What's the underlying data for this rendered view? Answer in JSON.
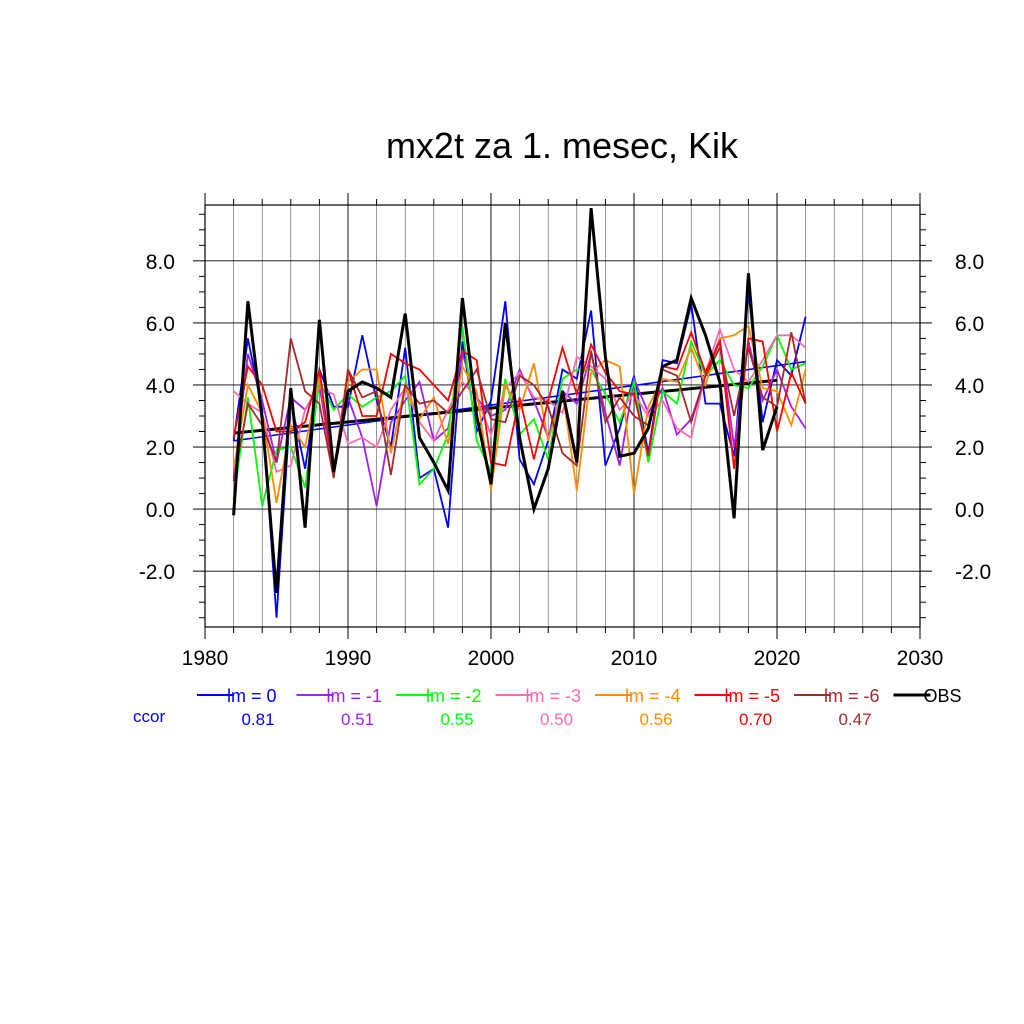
{
  "chart_data": {
    "type": "line",
    "title": "mx2t za 1. mesec, Kik",
    "xlabel": "",
    "ylabel": "",
    "xlim": [
      1980,
      2030
    ],
    "ylim": [
      -3.8,
      9.8
    ],
    "x_ticks": [
      1980,
      1990,
      2000,
      2010,
      2020,
      2030
    ],
    "y_ticks": [
      -2.0,
      0.0,
      2.0,
      4.0,
      6.0,
      8.0
    ],
    "y_tick_labels": [
      "-2.0",
      "0.0",
      "2.0",
      "4.0",
      "6.0",
      "8.0"
    ],
    "grid": true,
    "legend_position": "bottom",
    "ccor_label": "ccor",
    "x": [
      1982,
      1983,
      1984,
      1985,
      1986,
      1987,
      1988,
      1989,
      1990,
      1991,
      1992,
      1993,
      1994,
      1995,
      1996,
      1997,
      1998,
      1999,
      2000,
      2001,
      2002,
      2003,
      2004,
      2005,
      2006,
      2007,
      2008,
      2009,
      2010,
      2011,
      2012,
      2013,
      2014,
      2015,
      2016,
      2017,
      2018,
      2019,
      2020,
      2021,
      2022
    ],
    "series": [
      {
        "name": "lm = 0",
        "color": "#0000ff",
        "ccor": "0.81",
        "values": [
          2.2,
          5.5,
          3.2,
          -3.5,
          3.5,
          1.3,
          4.5,
          3.3,
          3.3,
          5.6,
          3.5,
          2.0,
          5.2,
          1.0,
          1.3,
          -0.6,
          5.4,
          2.5,
          3.5,
          6.7,
          1.6,
          0.8,
          2.2,
          4.5,
          4.2,
          6.4,
          1.4,
          2.6,
          4.3,
          1.8,
          4.8,
          4.7,
          6.6,
          3.4,
          3.4,
          1.7,
          7.0,
          2.8,
          4.8,
          4.3,
          6.2
        ]
      },
      {
        "name": "lm = -1",
        "color": "#a020f0",
        "ccor": "0.51",
        "values": [
          1.0,
          5.0,
          3.5,
          1.5,
          3.6,
          3.2,
          4.0,
          1.1,
          3.6,
          2.3,
          0.1,
          2.8,
          3.5,
          4.1,
          2.2,
          2.6,
          5.0,
          3.6,
          3.0,
          3.2,
          4.5,
          3.5,
          2.3,
          3.8,
          3.4,
          5.0,
          3.1,
          1.4,
          4.2,
          3.1,
          3.9,
          2.4,
          2.9,
          4.3,
          5.5,
          2.0,
          5.4,
          3.5,
          4.5,
          3.3,
          2.6
        ]
      },
      {
        "name": "lm = -2",
        "color": "#00ff00",
        "ccor": "0.55",
        "values": [
          0.3,
          3.6,
          0.1,
          1.9,
          2.0,
          0.7,
          4.1,
          3.2,
          3.7,
          3.3,
          3.6,
          3.8,
          4.3,
          0.8,
          1.3,
          2.4,
          5.9,
          2.2,
          1.2,
          4.2,
          2.4,
          2.9,
          1.6,
          4.2,
          4.5,
          4.5,
          3.7,
          2.8,
          4.1,
          1.5,
          3.8,
          3.4,
          5.4,
          4.3,
          4.8,
          4.0,
          3.9,
          4.6,
          5.6,
          4.5,
          4.7
        ]
      },
      {
        "name": "lm = -3",
        "color": "#ff69b4",
        "ccor": "0.50",
        "values": [
          3.8,
          3.4,
          3.1,
          1.2,
          1.4,
          3.2,
          3.9,
          3.7,
          2.1,
          2.3,
          2.0,
          3.2,
          3.9,
          2.8,
          2.2,
          3.2,
          4.1,
          3.6,
          2.4,
          3.9,
          4.4,
          3.6,
          3.5,
          3.1,
          4.9,
          4.6,
          4.2,
          3.2,
          3.7,
          3.0,
          3.5,
          2.6,
          2.3,
          4.4,
          5.8,
          4.5,
          4.1,
          4.8,
          5.6,
          5.6,
          5.2
        ]
      },
      {
        "name": "lm = -4",
        "color": "#ff8c00",
        "ccor": "0.56",
        "values": [
          1.3,
          4.0,
          3.1,
          0.2,
          2.7,
          2.0,
          4.3,
          1.3,
          4.1,
          4.5,
          4.5,
          1.8,
          4.0,
          2.9,
          3.6,
          2.1,
          4.6,
          3.8,
          0.6,
          4.0,
          3.2,
          4.7,
          2.2,
          3.8,
          0.6,
          4.4,
          4.8,
          4.6,
          0.5,
          3.3,
          4.2,
          4.1,
          5.2,
          4.0,
          5.5,
          5.6,
          5.9,
          3.9,
          3.8,
          2.7,
          4.5
        ]
      },
      {
        "name": "lm = -5",
        "color": "#ff0000",
        "ccor": "0.70",
        "values": [
          2.3,
          4.6,
          4.0,
          2.5,
          2.5,
          2.8,
          4.5,
          1.1,
          4.5,
          3.0,
          3.0,
          5.0,
          4.7,
          4.5,
          4.0,
          3.5,
          5.1,
          4.8,
          1.5,
          1.4,
          3.6,
          1.6,
          3.5,
          5.2,
          3.7,
          5.3,
          4.4,
          3.8,
          3.7,
          1.7,
          4.6,
          4.5,
          5.7,
          4.4,
          5.4,
          1.3,
          5.5,
          5.4,
          2.5,
          4.4,
          3.4
        ]
      },
      {
        "name": "lm = -6",
        "color": "#a52a2a",
        "ccor": "0.47",
        "values": [
          0.9,
          3.4,
          2.7,
          1.5,
          5.5,
          3.8,
          3.4,
          1.0,
          4.5,
          3.6,
          3.8,
          1.1,
          4.0,
          3.4,
          3.5,
          3.1,
          3.8,
          4.5,
          2.9,
          2.8,
          4.3,
          4.0,
          3.3,
          1.8,
          1.4,
          5.1,
          2.8,
          3.6,
          3.0,
          2.7,
          4.5,
          4.3,
          2.8,
          4.3,
          5.2,
          3.0,
          5.2,
          3.6,
          3.3,
          5.7,
          3.4
        ]
      },
      {
        "name": "OBS",
        "color": "#000000",
        "ccor": "",
        "values": [
          -0.2,
          6.7,
          2.9,
          -2.7,
          3.9,
          -0.6,
          6.1,
          1.2,
          3.8,
          4.1,
          3.9,
          3.6,
          6.3,
          2.3,
          1.5,
          0.6,
          6.8,
          3.0,
          0.8,
          6.0,
          2.3,
          0.0,
          1.3,
          3.8,
          1.5,
          9.7,
          4.9,
          1.7,
          1.8,
          2.6,
          4.6,
          4.8,
          6.8,
          5.6,
          4.1,
          -0.3,
          7.6,
          1.9,
          3.3,
          null,
          null
        ]
      }
    ],
    "trends": [
      {
        "color": "#0000ff",
        "x": [
          1982,
          2022
        ],
        "y": [
          2.2,
          4.75
        ]
      },
      {
        "color": "#000000",
        "x": [
          1982,
          2020
        ],
        "y": [
          2.45,
          4.15
        ]
      }
    ]
  }
}
